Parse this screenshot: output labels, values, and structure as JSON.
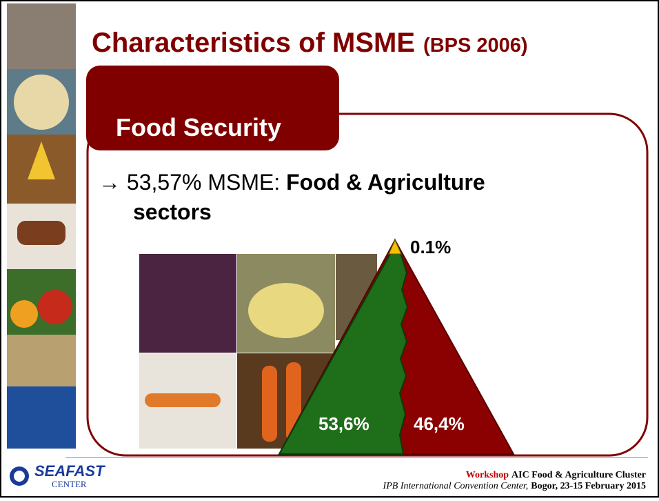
{
  "slide": {
    "title": "Characteristics of MSME",
    "title_note": "(BPS 2006)",
    "tab": "Food Security",
    "bullet": {
      "lead": "→ 53,57% MSME: ",
      "bold_line1": "Food & Agriculture",
      "bold_line2": "sectors"
    },
    "pyramid": {
      "top_label": "0.1%",
      "left_label": "53,6%",
      "right_label": "46,4%"
    },
    "logo": {
      "name": "SEAFAST",
      "sub": "CENTER"
    },
    "footer": {
      "workshop": "Workshop",
      "event": "AIC Food & Agriculture Cluster",
      "venue": "IPB International Convention Center,",
      "place_date": "Bogor, 23-15 February 2015"
    }
  }
}
